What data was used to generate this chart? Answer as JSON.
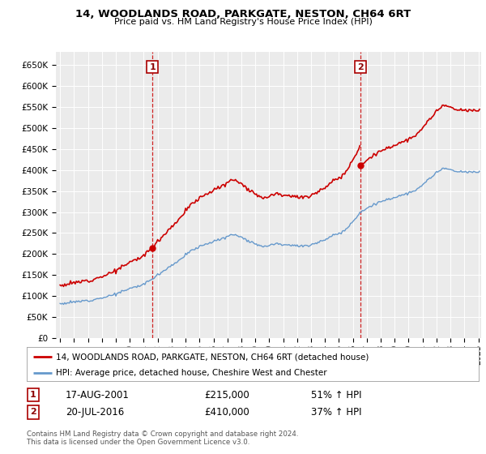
{
  "title": "14, WOODLANDS ROAD, PARKGATE, NESTON, CH64 6RT",
  "subtitle": "Price paid vs. HM Land Registry's House Price Index (HPI)",
  "ylim": [
    0,
    680000
  ],
  "yticks": [
    0,
    50000,
    100000,
    150000,
    200000,
    250000,
    300000,
    350000,
    400000,
    450000,
    500000,
    550000,
    600000,
    650000
  ],
  "ytick_labels": [
    "£0",
    "£50K",
    "£100K",
    "£150K",
    "£200K",
    "£250K",
    "£300K",
    "£350K",
    "£400K",
    "£450K",
    "£500K",
    "£550K",
    "£600K",
    "£650K"
  ],
  "property_color": "#cc0000",
  "hpi_color": "#6699cc",
  "sale1_x": 2001.62,
  "sale1_y": 215000,
  "sale2_x": 2016.54,
  "sale2_y": 410000,
  "legend_property": "14, WOODLANDS ROAD, PARKGATE, NESTON, CH64 6RT (detached house)",
  "legend_hpi": "HPI: Average price, detached house, Cheshire West and Chester",
  "table_row1": [
    "1",
    "17-AUG-2001",
    "£215,000",
    "51% ↑ HPI"
  ],
  "table_row2": [
    "2",
    "20-JUL-2016",
    "£410,000",
    "37% ↑ HPI"
  ],
  "footer": "Contains HM Land Registry data © Crown copyright and database right 2024.\nThis data is licensed under the Open Government Licence v3.0.",
  "background_color": "#ebebeb",
  "hpi_anchors_t": [
    1995.0,
    1996.0,
    1997.0,
    1998.0,
    1999.0,
    2000.0,
    2001.0,
    2001.62,
    2002.5,
    2003.5,
    2004.5,
    2005.5,
    2006.5,
    2007.5,
    2008.5,
    2009.5,
    2010.5,
    2011.5,
    2012.5,
    2013.5,
    2014.5,
    2015.5,
    2016.54,
    2017.5,
    2018.5,
    2019.5,
    2020.5,
    2021.5,
    2022.5,
    2023.5,
    2024.5
  ],
  "hpi_anchors_v": [
    82000,
    86000,
    90000,
    96000,
    105000,
    118000,
    128000,
    142000,
    162000,
    185000,
    210000,
    225000,
    235000,
    248000,
    232000,
    218000,
    225000,
    222000,
    218000,
    228000,
    242000,
    258000,
    300000,
    318000,
    330000,
    340000,
    350000,
    380000,
    405000,
    395000,
    395000
  ],
  "xmin": 1994.7,
  "xmax": 2025.2
}
